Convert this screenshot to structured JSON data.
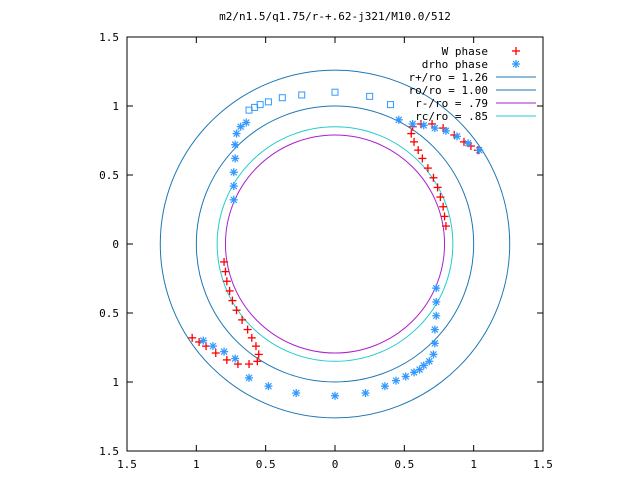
{
  "chart_data": {
    "type": "scatter",
    "title": "m2/n1.5/q1.75/r-+.62-j321/M10.0/512",
    "xlabel": "",
    "ylabel": "",
    "xlim": [
      -1.5,
      1.5
    ],
    "ylim": [
      -1.5,
      1.5
    ],
    "x_ticks": [
      {
        "value": -1.5,
        "label": "1.5"
      },
      {
        "value": -1.0,
        "label": "1"
      },
      {
        "value": -0.5,
        "label": "0.5"
      },
      {
        "value": 0,
        "label": "0"
      },
      {
        "value": 0.5,
        "label": "0.5"
      },
      {
        "value": 1.0,
        "label": "1"
      },
      {
        "value": 1.5,
        "label": "1.5"
      }
    ],
    "y_ticks": [
      {
        "value": 1.5,
        "label": "1.5"
      },
      {
        "value": 1.0,
        "label": "1"
      },
      {
        "value": 0.5,
        "label": "0.5"
      },
      {
        "value": 0,
        "label": "0"
      },
      {
        "value": -0.5,
        "label": "0.5"
      },
      {
        "value": -1.0,
        "label": "1"
      },
      {
        "value": -1.5,
        "label": "1.5"
      }
    ],
    "grid": false,
    "legend_position": "top-right",
    "legend": [
      {
        "label": "W phase",
        "marker": "+",
        "color": "#ff0000"
      },
      {
        "label": "drho phase",
        "marker": "*",
        "color": "#3399ff"
      },
      {
        "label": "r+/ro = 1.26",
        "line": true,
        "color": "#1f77b4"
      },
      {
        "label": "ro/ro = 1.00",
        "line": true,
        "color": "#1f77b4"
      },
      {
        "label": "r-/ro =  .79",
        "line": true,
        "color": "#aa22cc"
      },
      {
        "label": "rc/ro =  .85",
        "line": true,
        "color": "#22cccc"
      }
    ],
    "circles": [
      {
        "r": 1.26,
        "color": "#1f77b4"
      },
      {
        "r": 1.0,
        "color": "#1f77b4"
      },
      {
        "r": 0.79,
        "color": "#aa22cc"
      },
      {
        "r": 0.85,
        "color": "#22cccc"
      }
    ],
    "series": [
      {
        "name": "W phase",
        "marker": "+",
        "color": "#ff0000",
        "points": [
          [
            0.8,
            0.13
          ],
          [
            0.79,
            0.2
          ],
          [
            0.78,
            0.27
          ],
          [
            0.76,
            0.34
          ],
          [
            0.74,
            0.41
          ],
          [
            0.71,
            0.48
          ],
          [
            0.67,
            0.55
          ],
          [
            0.63,
            0.62
          ],
          [
            0.6,
            0.68
          ],
          [
            0.57,
            0.74
          ],
          [
            0.55,
            0.8
          ],
          [
            0.56,
            0.85
          ],
          [
            0.62,
            0.87
          ],
          [
            0.7,
            0.87
          ],
          [
            0.78,
            0.84
          ],
          [
            0.86,
            0.79
          ],
          [
            0.93,
            0.74
          ],
          [
            0.98,
            0.71
          ],
          [
            1.03,
            0.68
          ],
          [
            -0.8,
            -0.13
          ],
          [
            -0.79,
            -0.2
          ],
          [
            -0.78,
            -0.27
          ],
          [
            -0.76,
            -0.34
          ],
          [
            -0.74,
            -0.41
          ],
          [
            -0.71,
            -0.48
          ],
          [
            -0.67,
            -0.55
          ],
          [
            -0.63,
            -0.62
          ],
          [
            -0.6,
            -0.68
          ],
          [
            -0.57,
            -0.74
          ],
          [
            -0.55,
            -0.8
          ],
          [
            -0.56,
            -0.85
          ],
          [
            -0.62,
            -0.87
          ],
          [
            -0.7,
            -0.87
          ],
          [
            -0.78,
            -0.84
          ],
          [
            -0.86,
            -0.79
          ],
          [
            -0.93,
            -0.74
          ],
          [
            -0.98,
            -0.71
          ],
          [
            -1.03,
            -0.68
          ]
        ]
      },
      {
        "name": "drho phase",
        "marker": "*",
        "color": "#3399ff",
        "points": [
          [
            -0.73,
            0.32
          ],
          [
            -0.73,
            0.42
          ],
          [
            -0.73,
            0.52
          ],
          [
            -0.72,
            0.62
          ],
          [
            -0.72,
            0.72
          ],
          [
            -0.71,
            0.8
          ],
          [
            -0.68,
            0.85
          ],
          [
            -0.64,
            0.88
          ],
          [
            0.73,
            -0.32
          ],
          [
            0.73,
            -0.42
          ],
          [
            0.73,
            -0.52
          ],
          [
            0.72,
            -0.62
          ],
          [
            0.72,
            -0.72
          ],
          [
            0.71,
            -0.8
          ],
          [
            0.68,
            -0.85
          ],
          [
            0.64,
            -0.88
          ],
          [
            -0.95,
            -0.7
          ],
          [
            -0.88,
            -0.74
          ],
          [
            -0.8,
            -0.78
          ],
          [
            -0.72,
            -0.83
          ],
          [
            -0.62,
            -0.97
          ],
          [
            -0.48,
            -1.03
          ],
          [
            -0.28,
            -1.08
          ],
          [
            0.0,
            -1.1
          ],
          [
            0.22,
            -1.08
          ],
          [
            0.36,
            -1.03
          ],
          [
            0.44,
            -0.99
          ],
          [
            0.51,
            -0.96
          ],
          [
            0.57,
            -0.93
          ],
          [
            0.61,
            -0.91
          ],
          [
            0.46,
            0.9
          ],
          [
            0.56,
            0.87
          ],
          [
            0.64,
            0.86
          ],
          [
            0.72,
            0.84
          ],
          [
            0.8,
            0.82
          ],
          [
            0.88,
            0.78
          ],
          [
            0.96,
            0.73
          ],
          [
            1.04,
            0.68
          ]
        ]
      },
      {
        "name": "",
        "marker": "square",
        "color": "#3399ff",
        "points": [
          [
            -0.62,
            0.97
          ],
          [
            -0.58,
            0.99
          ],
          [
            -0.54,
            1.01
          ],
          [
            -0.48,
            1.03
          ],
          [
            -0.38,
            1.06
          ],
          [
            -0.24,
            1.08
          ],
          [
            0.0,
            1.1
          ],
          [
            0.25,
            1.07
          ],
          [
            0.4,
            1.01
          ]
        ]
      }
    ]
  }
}
